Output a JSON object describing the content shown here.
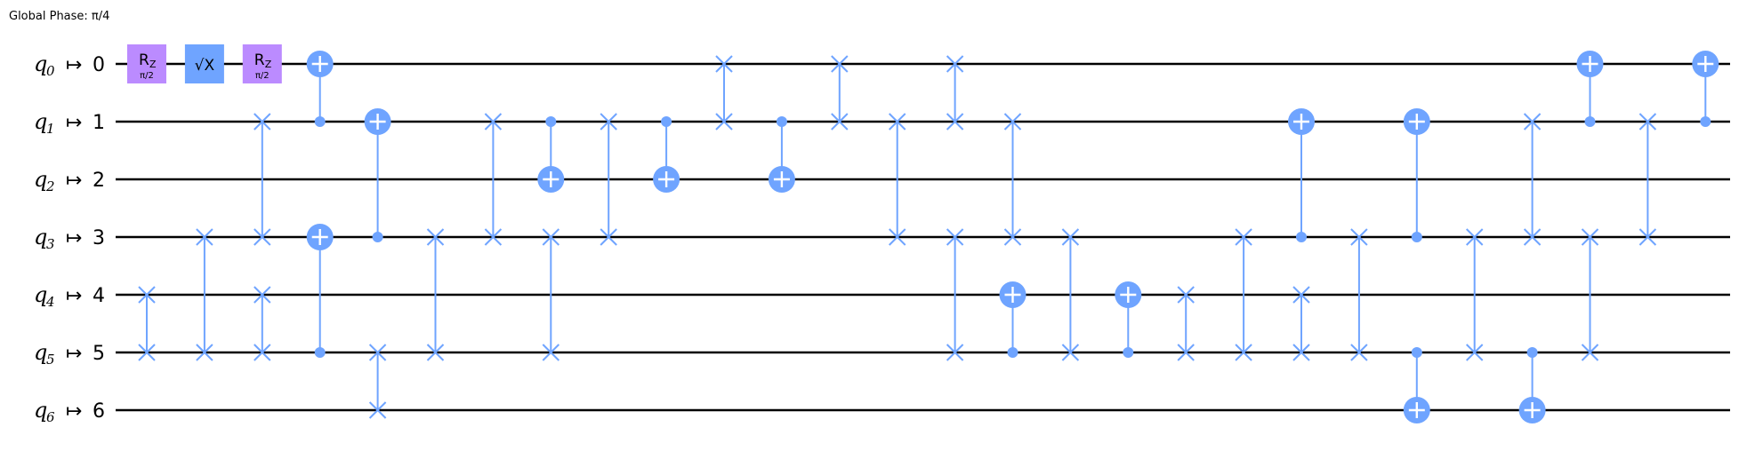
{
  "global_phase": "Global Phase: π/4",
  "qubits": [
    {
      "name": "q",
      "index": "0",
      "arrow": "↦",
      "target": "0"
    },
    {
      "name": "q",
      "index": "1",
      "arrow": "↦",
      "target": "1"
    },
    {
      "name": "q",
      "index": "2",
      "arrow": "↦",
      "target": "2"
    },
    {
      "name": "q",
      "index": "3",
      "arrow": "↦",
      "target": "3"
    },
    {
      "name": "q",
      "index": "4",
      "arrow": "↦",
      "target": "4"
    },
    {
      "name": "q",
      "index": "5",
      "arrow": "↦",
      "target": "5"
    },
    {
      "name": "q",
      "index": "6",
      "arrow": "↦",
      "target": "6"
    }
  ],
  "colors": {
    "rz": "#BB8BFF",
    "sx": "#6FA4FF",
    "two_qubit": "#6FA4FF",
    "wire": "#000000"
  },
  "gates": [
    {
      "type": "rz",
      "qubit": 0,
      "col": 0,
      "label": "R",
      "sub": "Z",
      "param": "π/2"
    },
    {
      "type": "sx",
      "qubit": 0,
      "col": 1,
      "label": "√X"
    },
    {
      "type": "rz",
      "qubit": 0,
      "col": 2,
      "label": "R",
      "sub": "Z",
      "param": "π/2"
    },
    {
      "type": "swap",
      "qubits": [
        4,
        5
      ],
      "col": 0
    },
    {
      "type": "swap",
      "qubits": [
        3,
        5
      ],
      "col": 1
    },
    {
      "type": "swap",
      "qubits": [
        1,
        3
      ],
      "col": 2
    },
    {
      "type": "swap",
      "qubits": [
        4,
        5
      ],
      "col": 2
    },
    {
      "type": "cx",
      "control": 1,
      "target": 0,
      "col": 3
    },
    {
      "type": "cx",
      "control": 5,
      "target": 3,
      "col": 3
    },
    {
      "type": "cx",
      "control": 3,
      "target": 1,
      "col": 4
    },
    {
      "type": "swap",
      "qubits": [
        5,
        6
      ],
      "col": 4
    },
    {
      "type": "swap",
      "qubits": [
        3,
        5
      ],
      "col": 5
    },
    {
      "type": "swap",
      "qubits": [
        1,
        3
      ],
      "col": 6
    },
    {
      "type": "cx",
      "control": 1,
      "target": 2,
      "col": 7
    },
    {
      "type": "swap",
      "qubits": [
        3,
        5
      ],
      "col": 7
    },
    {
      "type": "swap",
      "qubits": [
        1,
        3
      ],
      "col": 8
    },
    {
      "type": "cx",
      "control": 1,
      "target": 2,
      "col": 9
    },
    {
      "type": "swap",
      "qubits": [
        0,
        1
      ],
      "col": 10
    },
    {
      "type": "cx",
      "control": 1,
      "target": 2,
      "col": 11
    },
    {
      "type": "swap",
      "qubits": [
        0,
        1
      ],
      "col": 12
    },
    {
      "type": "swap",
      "qubits": [
        1,
        3
      ],
      "col": 13
    },
    {
      "type": "swap",
      "qubits": [
        0,
        1
      ],
      "col": 14
    },
    {
      "type": "swap",
      "qubits": [
        3,
        5
      ],
      "col": 14
    },
    {
      "type": "swap",
      "qubits": [
        1,
        3
      ],
      "col": 15
    },
    {
      "type": "cx",
      "control": 5,
      "target": 4,
      "col": 15
    },
    {
      "type": "swap",
      "qubits": [
        3,
        5
      ],
      "col": 16
    },
    {
      "type": "cx",
      "control": 5,
      "target": 4,
      "col": 17
    },
    {
      "type": "swap",
      "qubits": [
        4,
        5
      ],
      "col": 18
    },
    {
      "type": "swap",
      "qubits": [
        3,
        5
      ],
      "col": 19
    },
    {
      "type": "cx",
      "control": 3,
      "target": 1,
      "col": 20
    },
    {
      "type": "swap",
      "qubits": [
        4,
        5
      ],
      "col": 20
    },
    {
      "type": "swap",
      "qubits": [
        3,
        5
      ],
      "col": 21
    },
    {
      "type": "cx",
      "control": 3,
      "target": 1,
      "col": 22
    },
    {
      "type": "cx",
      "control": 5,
      "target": 6,
      "col": 22
    },
    {
      "type": "swap",
      "qubits": [
        3,
        5
      ],
      "col": 23
    },
    {
      "type": "swap",
      "qubits": [
        1,
        3
      ],
      "col": 24
    },
    {
      "type": "cx",
      "control": 5,
      "target": 6,
      "col": 24
    },
    {
      "type": "cx",
      "control": 1,
      "target": 0,
      "col": 25
    },
    {
      "type": "swap",
      "qubits": [
        3,
        5
      ],
      "col": 25
    },
    {
      "type": "swap",
      "qubits": [
        1,
        3
      ],
      "col": 26
    },
    {
      "type": "cx",
      "control": 1,
      "target": 0,
      "col": 27
    }
  ]
}
